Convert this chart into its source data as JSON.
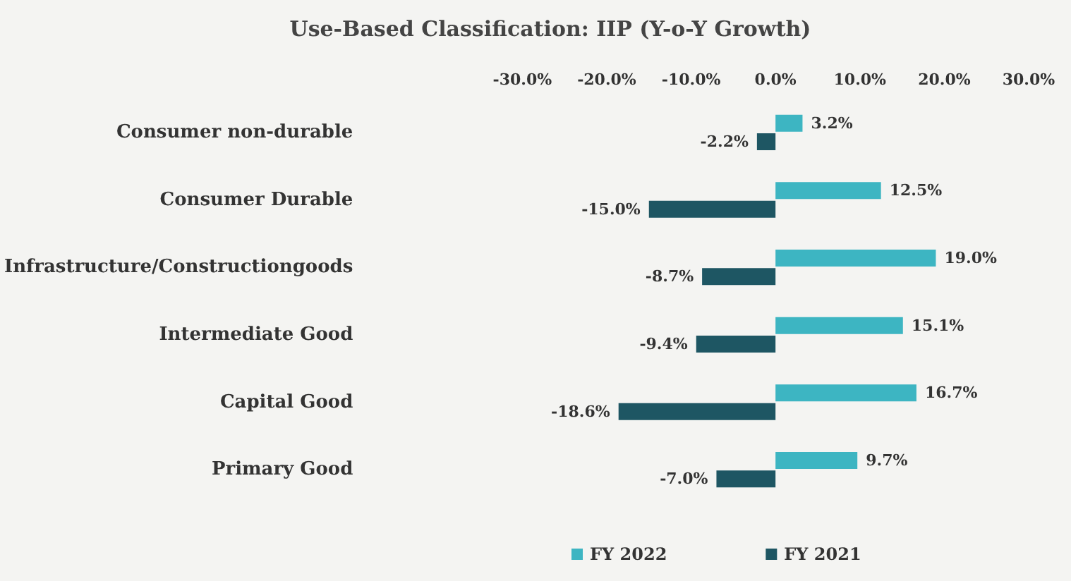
{
  "chart_data": {
    "type": "bar",
    "orientation": "horizontal",
    "title": "Use-Based Classification: IIP (Y-o-Y Growth)",
    "categories": [
      "Consumer non-durable",
      "Consumer Durable",
      "Infrastructure/Constructiongoods",
      "Intermediate Good",
      "Capital Good",
      "Primary Good"
    ],
    "series": [
      {
        "name": "FY 2022",
        "color": "#3db5c2",
        "values": [
          3.2,
          12.5,
          19.0,
          15.1,
          16.7,
          9.7
        ],
        "value_labels": [
          "3.2%",
          "12.5%",
          "19.0%",
          "15.1%",
          "16.7%",
          "9.7%"
        ]
      },
      {
        "name": "FY 2021",
        "color": "#1e5663",
        "values": [
          -2.2,
          -15.0,
          -8.7,
          -9.4,
          -18.6,
          -7.0
        ],
        "value_labels": [
          "-2.2%",
          "-15.0%",
          "-8.7%",
          "-9.4%",
          "-18.6%",
          "-7.0%"
        ]
      }
    ],
    "x2lim": [
      -30,
      30
    ],
    "x2ticks": [
      {
        "value": -30,
        "label": "-30.0%"
      },
      {
        "value": -20,
        "label": "-20.0%"
      },
      {
        "value": -10,
        "label": "-10.0%"
      },
      {
        "value": 0,
        "label": "0.0%"
      },
      {
        "value": 10,
        "label": "10.0%"
      },
      {
        "value": 20,
        "label": "20.0%"
      },
      {
        "value": 30,
        "label": "30.0%"
      }
    ],
    "grid": false,
    "legend": "bottom"
  }
}
